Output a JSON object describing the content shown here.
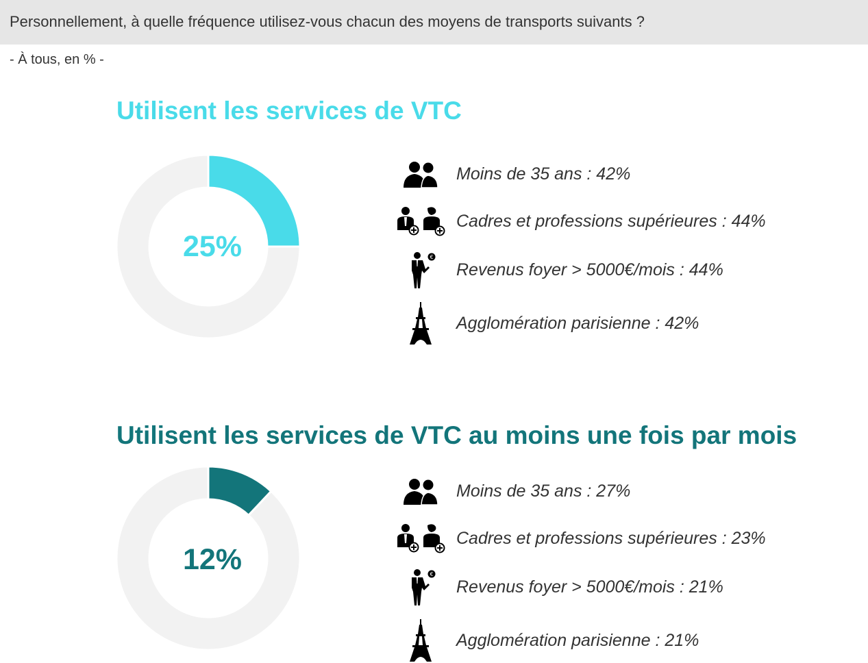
{
  "header": {
    "question": "Personnellement, à quelle fréquence utilisez-vous chacun des moyens de transports suivants ?",
    "base": "- À tous, en % -"
  },
  "colors": {
    "header_bg": "#e6e6e6",
    "donut_track": "#f2f2f2",
    "section1_accent": "#49dbe9",
    "section2_accent": "#13757a"
  },
  "icons": [
    "two-people-icon",
    "two-managers-plus-icon",
    "businessman-euro-icon",
    "eiffel-tower-icon"
  ],
  "sections": [
    {
      "title": "Utilisent les services de VTC",
      "percent_label": "25%",
      "stats": [
        {
          "icon": "two-people-icon",
          "label": "Moins de 35 ans : 42%"
        },
        {
          "icon": "two-managers-plus-icon",
          "label": "Cadres et professions supérieures : 44%"
        },
        {
          "icon": "businessman-euro-icon",
          "label": "Revenus foyer > 5000€/mois : 44%"
        },
        {
          "icon": "eiffel-tower-icon",
          "label": "Agglomération parisienne : 42%"
        }
      ]
    },
    {
      "title": "Utilisent les services de VTC au moins une fois par mois",
      "percent_label": "12%",
      "stats": [
        {
          "icon": "two-people-icon",
          "label": "Moins de 35 ans : 27%"
        },
        {
          "icon": "two-managers-plus-icon",
          "label": "Cadres et professions supérieures : 23%"
        },
        {
          "icon": "businessman-euro-icon",
          "label": "Revenus foyer > 5000€/mois : 21%"
        },
        {
          "icon": "eiffel-tower-icon",
          "label": "Agglomération parisienne : 21%"
        }
      ]
    }
  ],
  "chart_data": [
    {
      "type": "pie",
      "title": "Utilisent les services de VTC",
      "labels": [
        "Utilisent les services de VTC",
        ""
      ],
      "values": [
        25,
        75
      ],
      "colors": [
        "#49dbe9",
        "#f2f2f2"
      ]
    },
    {
      "type": "pie",
      "title": "Utilisent les services de VTC au moins une fois par mois",
      "labels": [
        "Utilisent les services de VTC au moins une fois par mois",
        ""
      ],
      "values": [
        12,
        88
      ],
      "colors": [
        "#13757a",
        "#f2f2f2"
      ]
    }
  ]
}
